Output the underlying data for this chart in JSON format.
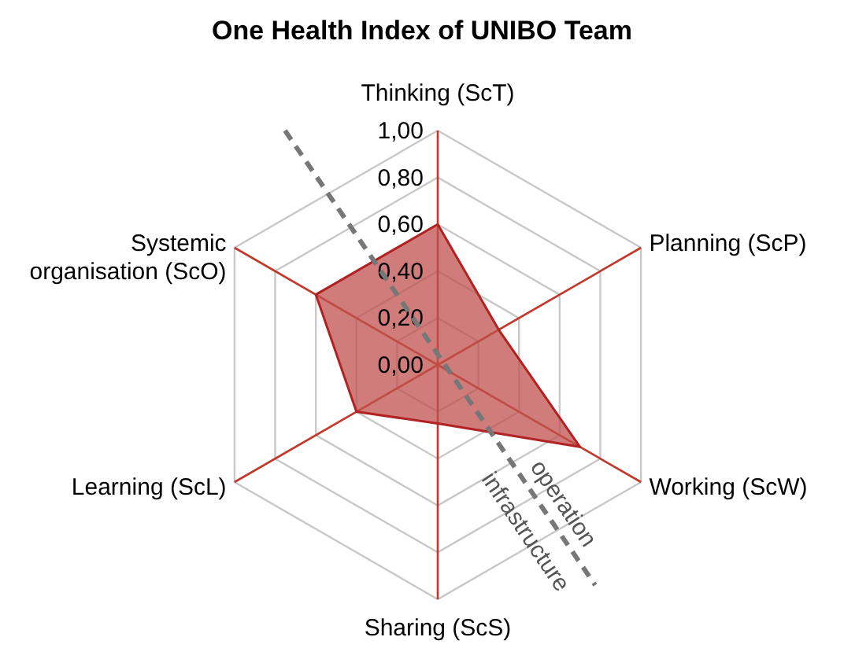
{
  "chart_data": {
    "type": "radar",
    "title": "One Health Index of UNIBO Team",
    "categories": [
      "Thinking (ScT)",
      "Planning (ScP)",
      "Working (ScW)",
      "Sharing (ScS)",
      "Learning (ScL)",
      "Systemic organisation (ScO)"
    ],
    "series": [
      {
        "color": "#c0504d",
        "values": [
          0.6,
          0.3,
          0.7,
          0.25,
          0.4,
          0.6
        ]
      }
    ],
    "ylim": [
      0,
      1
    ],
    "yticks": [
      {
        "value": 0,
        "label": "0,00"
      },
      {
        "value": 0.2,
        "label": "0,20"
      },
      {
        "value": 0.4,
        "label": "0,40"
      },
      {
        "value": 0.6,
        "label": "0,60"
      },
      {
        "value": 0.8,
        "label": "0,80"
      },
      {
        "value": 1,
        "label": "1,00"
      }
    ],
    "grid": true,
    "marker": "none",
    "annotations": [
      "operation",
      "infrastructure"
    ]
  }
}
